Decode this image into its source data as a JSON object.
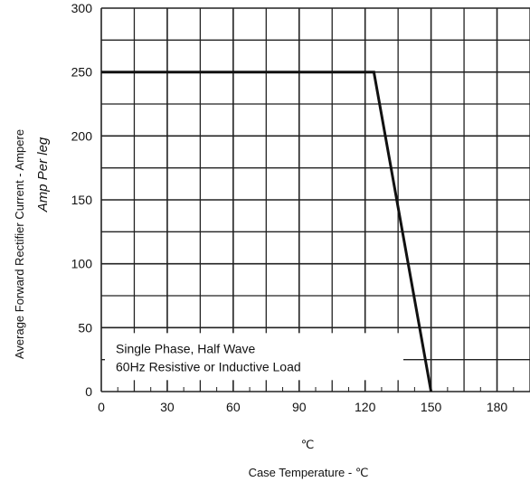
{
  "chart_data": {
    "type": "line",
    "title": "",
    "xlabel": "Case Temperature -  ℃",
    "xunit": "℃",
    "ylabel_line1": "Average Forward Rectifier Current - Ampere",
    "ylabel_line2": "Amp  Per leg",
    "xlim": [
      0,
      195
    ],
    "ylim": [
      0,
      300
    ],
    "x_ticks": [
      0,
      30,
      60,
      90,
      120,
      150,
      180
    ],
    "y_ticks": [
      0,
      50,
      100,
      150,
      200,
      250,
      300
    ],
    "x_tick_labels": [
      "0",
      "30",
      "60",
      "90",
      "120",
      "150",
      "180"
    ],
    "y_tick_labels": [
      "0",
      "50",
      "100",
      "150",
      "200",
      "250",
      "300"
    ],
    "grid": true,
    "series": [
      {
        "x": [
          0,
          124,
          150
        ],
        "y": [
          250,
          250,
          0
        ]
      }
    ],
    "annotation": {
      "line1": "Single Phase, Half Wave",
      "line2": "60Hz Resistive or Inductive Load"
    }
  }
}
